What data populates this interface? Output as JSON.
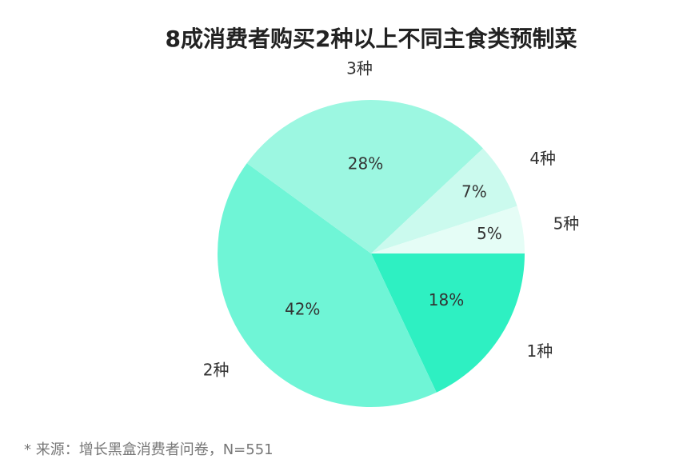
{
  "chart_data": {
    "type": "pie",
    "title": "8成消费者购买2种以上不同主食类预制菜",
    "categories": [
      "1种",
      "2种",
      "3种",
      "4种",
      "5种"
    ],
    "values": [
      18,
      42,
      28,
      7,
      5
    ],
    "value_labels": [
      "18%",
      "42%",
      "28%",
      "7%",
      "5%"
    ],
    "colors": [
      "#2ef0c2",
      "#6ff5d6",
      "#9cf7e1",
      "#cbfaee",
      "#e5fdf6"
    ],
    "note": "* 来源：增长黑盒消费者问卷，N=551"
  }
}
